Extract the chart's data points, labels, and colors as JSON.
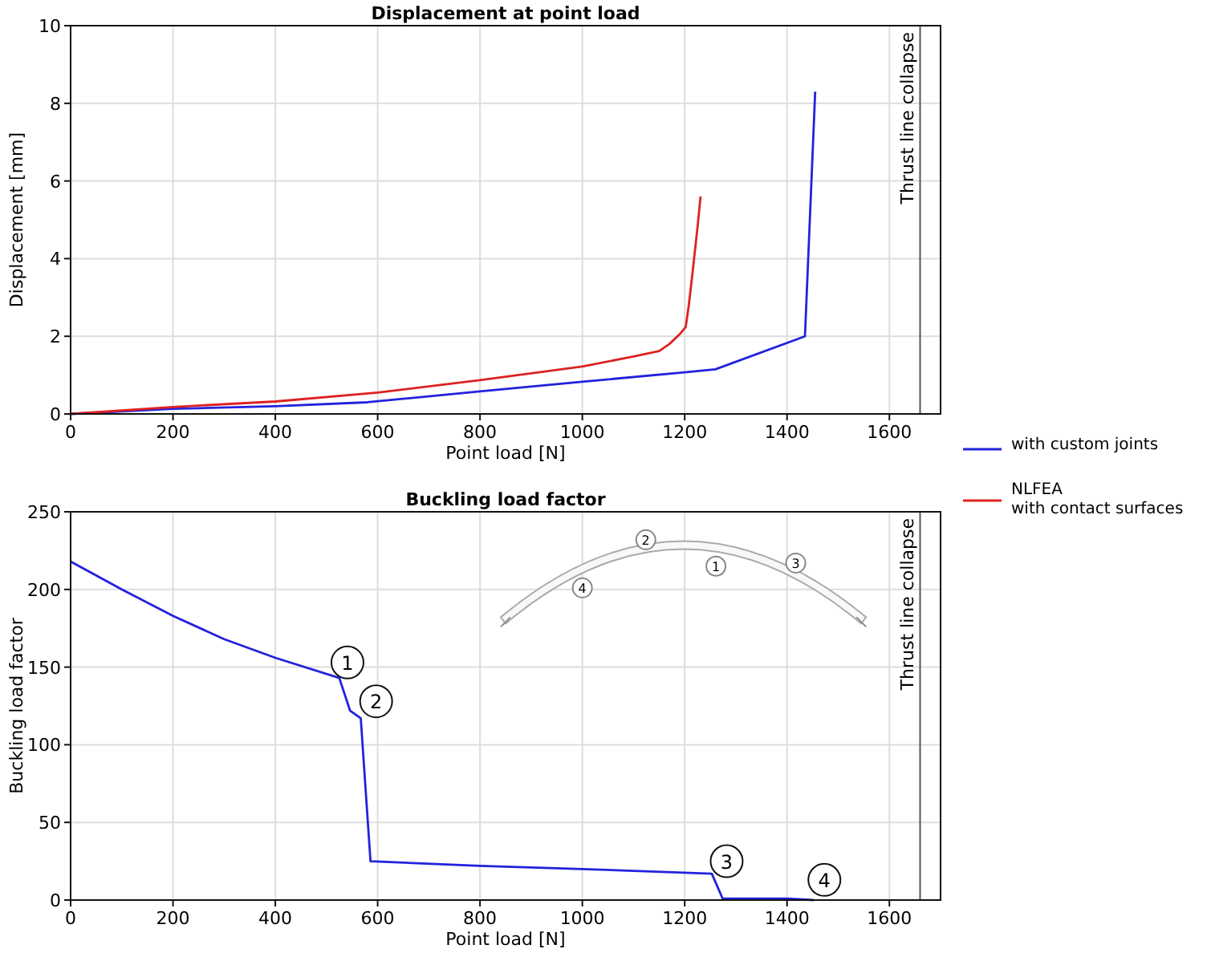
{
  "chart_data": [
    {
      "type": "line",
      "title": "Displacement at point load",
      "xlabel": "Point load [N]",
      "ylabel": "Displacement [mm]",
      "xlim": [
        0,
        1700
      ],
      "xticks": [
        0,
        200,
        400,
        600,
        800,
        1000,
        1200,
        1400,
        1600
      ],
      "ylim": [
        0,
        10
      ],
      "yticks": [
        0,
        2,
        4,
        6,
        8,
        10
      ],
      "grid": true,
      "legend": "right",
      "ref_lines": [
        {
          "axis": "x",
          "value": 1660,
          "label": "Thrust line collapse",
          "color": "#555555"
        }
      ],
      "series": [
        {
          "name": "with custom joints",
          "color": "#2222dd",
          "x": [
            0,
            200,
            400,
            580,
            800,
            1000,
            1200,
            1260,
            1435,
            1455
          ],
          "values": [
            0,
            0.13,
            0.2,
            0.3,
            0.58,
            0.83,
            1.07,
            1.15,
            2.0,
            8.3
          ]
        },
        {
          "name": "NLFEA\nwith contact surfaces",
          "color": "#dd2222",
          "x": [
            0,
            200,
            400,
            600,
            800,
            1000,
            1100,
            1150,
            1170,
            1190,
            1202,
            1208,
            1215,
            1225,
            1231
          ],
          "values": [
            0,
            0.18,
            0.32,
            0.55,
            0.87,
            1.22,
            1.48,
            1.62,
            1.8,
            2.05,
            2.24,
            2.8,
            3.6,
            4.8,
            5.6
          ]
        }
      ]
    },
    {
      "type": "line",
      "title": "Buckling load factor",
      "xlabel": "Point load [N]",
      "ylabel": "Buckling load factor",
      "xlim": [
        0,
        1700
      ],
      "xticks": [
        0,
        200,
        400,
        600,
        800,
        1000,
        1200,
        1400,
        1600
      ],
      "ylim": [
        0,
        250
      ],
      "yticks": [
        0,
        50,
        100,
        150,
        200,
        250
      ],
      "grid": true,
      "ref_lines": [
        {
          "axis": "x",
          "value": 1660,
          "label": "Thrust line collapse",
          "color": "#555555"
        }
      ],
      "annotations": [
        {
          "text": "1",
          "x": 541,
          "y": 153
        },
        {
          "text": "2",
          "x": 597,
          "y": 128
        },
        {
          "text": "3",
          "x": 1282,
          "y": 25
        },
        {
          "text": "4",
          "x": 1473,
          "y": 13
        },
        {
          "text": "1",
          "x": 1261,
          "y": 215
        },
        {
          "text": "2",
          "x": 1124,
          "y": 232
        },
        {
          "text": "3",
          "x": 1417,
          "y": 217
        },
        {
          "text": "4",
          "x": 1000,
          "y": 201
        }
      ],
      "series": [
        {
          "color": "#2222dd",
          "x": [
            0,
            100,
            200,
            300,
            400,
            525,
            546,
            567,
            586,
            800,
            1000,
            1253,
            1274,
            1400,
            1452
          ],
          "values": [
            218,
            200,
            183,
            168,
            156,
            143,
            122,
            117,
            25,
            22,
            20,
            17,
            1,
            1,
            0
          ]
        }
      ]
    }
  ]
}
